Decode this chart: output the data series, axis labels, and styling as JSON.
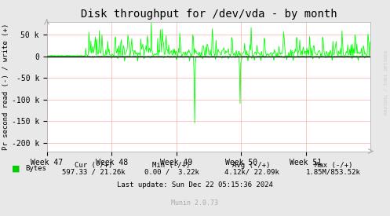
{
  "title": "Disk throughput for /dev/vda - by month",
  "ylabel": "Pr second read (-) / write (+)",
  "xlabel_ticks": [
    "Week 47",
    "Week 48",
    "Week 49",
    "Week 50",
    "Week 51"
  ],
  "yticks": [
    -200000,
    -150000,
    -100000,
    -50000,
    0,
    50000
  ],
  "ytick_labels": [
    "-200 k",
    "-150 k",
    "-100 k",
    "-50 k",
    "0",
    "50 k"
  ],
  "background_color": "#e8e8e8",
  "plot_bg_color": "#ffffff",
  "line_color": "#00ff00",
  "zero_line_color": "#000000",
  "grid_color": "#ff9999",
  "watermark": "RRDTOOL / TOBI OETIKER",
  "legend_label": "Bytes",
  "legend_color": "#00cc00",
  "cur_label": "Cur (-/+)",
  "cur_val": "597.33 / 21.26k",
  "min_label": "Min (-/+)",
  "min_val": "0.00 /  3.22k",
  "avg_label": "Avg (-/+)",
  "avg_val": "4.12k/ 22.09k",
  "max_label": "Max (-/+)",
  "max_val": "1.85M/853.52k",
  "last_update": "Last update: Sun Dec 22 05:15:36 2024",
  "munin_version": "Munin 2.0.73",
  "ylim": [
    -220000,
    80000
  ],
  "title_color": "#000000",
  "figsize": [
    4.97,
    2.75
  ],
  "dpi": 100
}
